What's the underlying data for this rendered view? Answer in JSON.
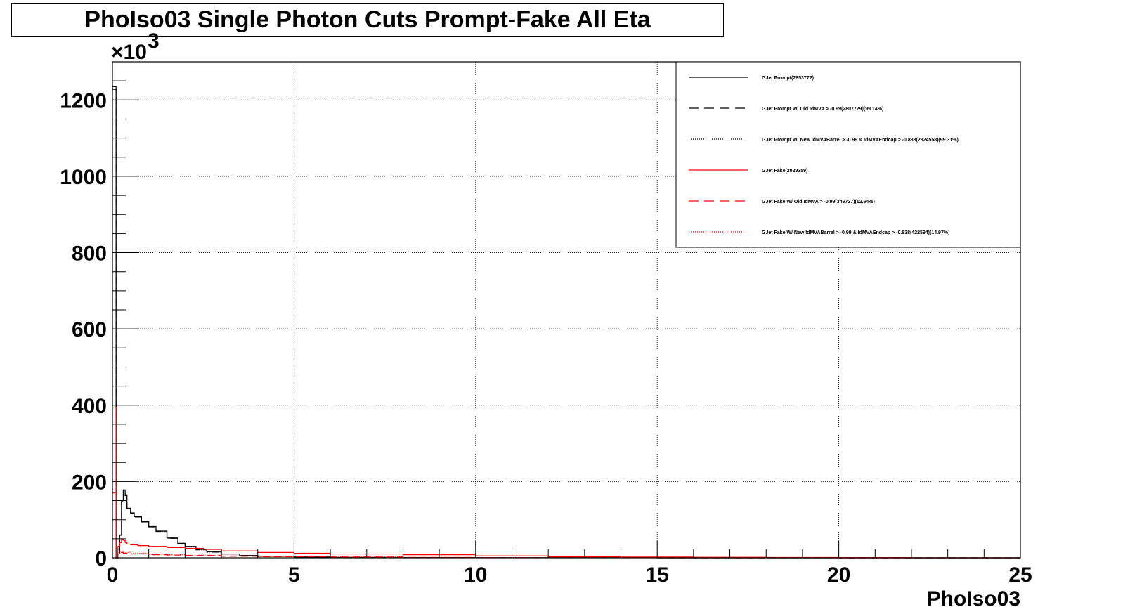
{
  "chart_data": {
    "type": "line",
    "title": "PhoIso03 Single Photon Cuts Prompt-Fake All Eta",
    "xlabel": "PhoIso03",
    "ylabel": "",
    "y_exponent_label": "×10",
    "y_exponent_power": "3",
    "xlim": [
      0,
      25
    ],
    "ylim": [
      0,
      1300
    ],
    "x_ticks": [
      0,
      5,
      10,
      15,
      20,
      25
    ],
    "x_tick_labels": [
      "0",
      "5",
      "10",
      "15",
      "20",
      "25"
    ],
    "y_ticks": [
      0,
      200,
      400,
      600,
      800,
      1000,
      1200
    ],
    "y_tick_labels": [
      "0",
      "200",
      "400",
      "600",
      "800",
      "1000",
      "1200"
    ],
    "grid": true,
    "legend_position": "top-right",
    "series": [
      {
        "name": "GJet Prompt(2853772)",
        "color": "#000000",
        "dash": "solid",
        "x": [
          0.0,
          0.05,
          0.1,
          0.15,
          0.2,
          0.25,
          0.3,
          0.35,
          0.4,
          0.5,
          0.6,
          0.8,
          1.0,
          1.2,
          1.5,
          1.8,
          2.0,
          2.3,
          2.6,
          3.0,
          3.5,
          4.0,
          5.0,
          6.0,
          8.0,
          10.0,
          15.0,
          20.0,
          25.0
        ],
        "y": [
          1235,
          1235,
          0,
          10,
          60,
          150,
          178,
          165,
          130,
          118,
          108,
          95,
          82,
          70,
          52,
          38,
          30,
          22,
          16,
          10,
          6,
          4,
          2,
          1,
          0.5,
          0.2,
          0,
          0,
          0
        ]
      },
      {
        "name": "GJet Prompt W/ Old IdMVA > -0.99(2807729)(99.14%)",
        "color": "#000000",
        "dash": "long-dash",
        "x": [
          0.0,
          0.05,
          0.1,
          0.15,
          0.2,
          0.25,
          0.3,
          0.35,
          0.4,
          0.5,
          0.6,
          0.8,
          1.0,
          1.2,
          1.5,
          1.8,
          2.0,
          2.3,
          2.6,
          3.0,
          3.5,
          4.0,
          5.0,
          6.0,
          8.0,
          10.0,
          15.0,
          20.0,
          25.0
        ],
        "y": [
          1228,
          1228,
          0,
          10,
          59,
          148,
          176,
          163,
          129,
          117,
          107,
          94,
          81,
          69,
          51,
          37,
          29,
          21,
          15,
          10,
          6,
          4,
          2,
          1,
          0.5,
          0.2,
          0,
          0,
          0
        ]
      },
      {
        "name": "GJet Prompt W/ New IdMVABarrel > -0.99 & IdMVAEndcap > -0.838(2824558)(99.31%)",
        "color": "#000000",
        "dash": "dotted",
        "x": [
          0.0,
          0.05,
          0.1,
          0.15,
          0.2,
          0.25,
          0.3,
          0.35,
          0.4,
          0.5,
          0.6,
          0.8,
          1.0,
          1.2,
          1.5,
          1.8,
          2.0,
          2.3,
          2.6,
          3.0,
          3.5,
          4.0,
          5.0,
          6.0,
          8.0,
          10.0,
          15.0,
          20.0,
          25.0
        ],
        "y": [
          1230,
          1230,
          0,
          10,
          59,
          149,
          177,
          164,
          129,
          117,
          107,
          94,
          81,
          69,
          51,
          37,
          29,
          21,
          15,
          10,
          6,
          4,
          2,
          1,
          0.5,
          0.2,
          0,
          0,
          0
        ]
      },
      {
        "name": "GJet Fake(2029359)",
        "color": "#ff0000",
        "dash": "solid",
        "x": [
          0.0,
          0.05,
          0.1,
          0.15,
          0.2,
          0.25,
          0.3,
          0.35,
          0.4,
          0.5,
          0.7,
          1.0,
          1.5,
          2.0,
          2.5,
          3.0,
          4.0,
          5.0,
          6.0,
          8.0,
          10.0,
          12.0,
          14.0,
          16.0,
          18.0,
          20.0,
          22.0,
          25.0
        ],
        "y": [
          395,
          395,
          0,
          30,
          40,
          48,
          46,
          40,
          36,
          34,
          32,
          30,
          27,
          25,
          22,
          18,
          14,
          12,
          10,
          8,
          5,
          3,
          2,
          1.5,
          1,
          0.5,
          0,
          0
        ]
      },
      {
        "name": "GJet Fake W/ Old IdMVA > -0.99(346727)(12.64%)",
        "color": "#ff0000",
        "dash": "long-dash",
        "x": [
          0.0,
          0.05,
          0.1,
          0.15,
          0.2,
          0.3,
          0.5,
          1.0,
          1.5,
          2.0,
          3.0,
          4.0,
          6.0,
          8.0,
          10.0,
          15.0,
          20.0,
          25.0
        ],
        "y": [
          170,
          170,
          0,
          10,
          14,
          12,
          10,
          8,
          7,
          6,
          4,
          3,
          2,
          1,
          0.5,
          0.2,
          0,
          0
        ]
      },
      {
        "name": "GJet Fake W/ New IdMVABarrel > -0.99 & IdMVAEndcap > -0.838(422594)(14.97%)",
        "color": "#ff0000",
        "dash": "dotted",
        "x": [
          0.0,
          0.05,
          0.1,
          0.15,
          0.2,
          0.3,
          0.5,
          1.0,
          1.5,
          2.0,
          3.0,
          4.0,
          6.0,
          8.0,
          10.0,
          15.0,
          20.0,
          25.0
        ],
        "y": [
          180,
          180,
          0,
          12,
          16,
          14,
          12,
          9,
          8,
          7,
          5,
          3.5,
          2.5,
          1.2,
          0.6,
          0.2,
          0,
          0
        ]
      }
    ]
  }
}
